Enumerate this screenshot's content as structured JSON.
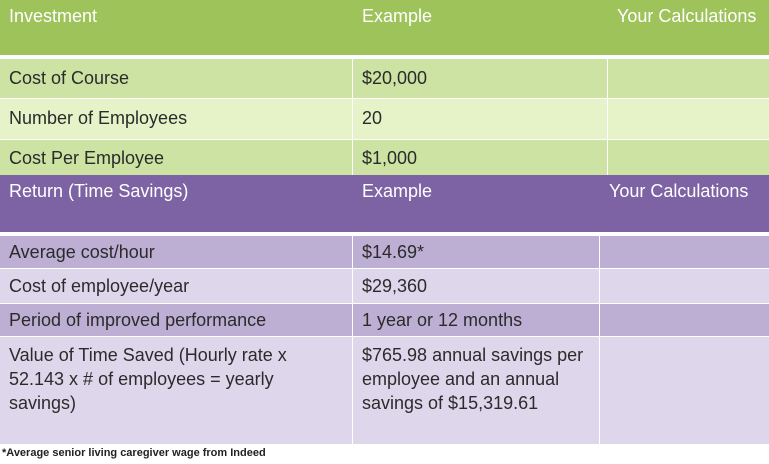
{
  "investment": {
    "headers": [
      "Investment",
      "Example",
      "Your Calculations"
    ],
    "rows": [
      {
        "label": "Cost of Course",
        "example": "$20,000",
        "calc": ""
      },
      {
        "label": "Number of Employees",
        "example": "20",
        "calc": ""
      },
      {
        "label": "Cost Per Employee",
        "example": "$1,000",
        "calc": ""
      }
    ]
  },
  "return": {
    "headers": [
      "Return (Time Savings)",
      "Example",
      "Your Calculations"
    ],
    "rows": [
      {
        "label": "Average cost/hour",
        "example": "$14.69*",
        "calc": ""
      },
      {
        "label": "Cost of employee/year",
        "example": "$29,360",
        "calc": ""
      },
      {
        "label": "Period of improved performance",
        "example": "1 year or 12 months",
        "calc": ""
      },
      {
        "label": "Value of Time Saved (Hourly rate x 52.143 x # of employees = yearly savings)",
        "example": "$765.98 annual savings per employee and an annual savings of $15,319.61",
        "calc": ""
      }
    ]
  },
  "footnote": "*Average senior living caregiver wage from Indeed",
  "colors": {
    "green_header": "#9ec35a",
    "green_row_dark": "#cde3a3",
    "green_row_light": "#e6f3c9",
    "purple_header": "#7e63a4",
    "purple_row_dark": "#bcafd3",
    "purple_row_light": "#ded7ec"
  }
}
